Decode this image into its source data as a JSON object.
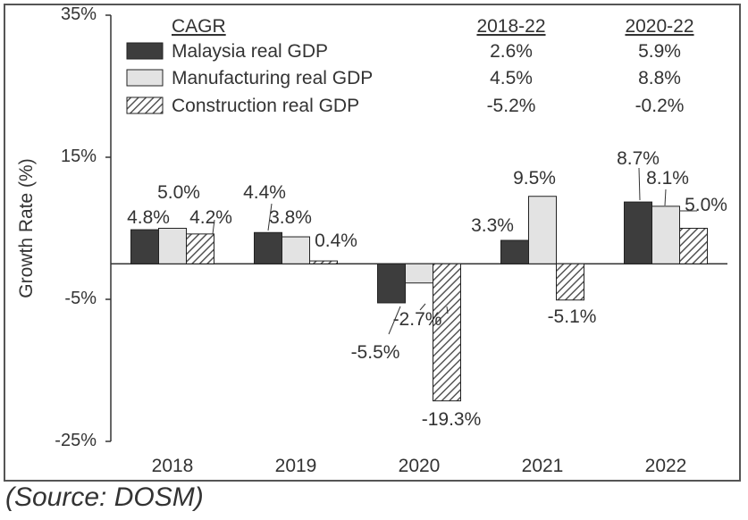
{
  "chart_data": {
    "type": "bar",
    "title": "",
    "xlabel": "",
    "ylabel": "Growth Rate (%)",
    "ylim": [
      -25,
      35
    ],
    "yticks": [
      35,
      15,
      -5,
      -25
    ],
    "ytick_labels": [
      "35%",
      "15%",
      "-5%",
      "-25%"
    ],
    "categories": [
      "2018",
      "2019",
      "2020",
      "2021",
      "2022"
    ],
    "series": [
      {
        "name": "Malaysia real GDP",
        "values": [
          4.8,
          4.4,
          -5.5,
          3.3,
          8.7
        ],
        "labels": [
          "4.8%",
          "4.4%",
          "-5.5%",
          "3.3%",
          "8.7%"
        ],
        "pattern": "solid-dark",
        "color": "#3d3d3d"
      },
      {
        "name": "Manufacturing real GDP",
        "values": [
          5.0,
          3.8,
          -2.7,
          9.5,
          8.1
        ],
        "labels": [
          "5.0%",
          "3.8%",
          "-2.7%",
          "9.5%",
          "8.1%"
        ],
        "pattern": "solid-light",
        "color": "#e3e3e3"
      },
      {
        "name": "Construction real GDP",
        "values": [
          4.2,
          0.4,
          -19.3,
          -5.1,
          5.0
        ],
        "labels": [
          "4.2%",
          "0.4%",
          "-19.3%",
          "-5.1%",
          "5.0%"
        ],
        "pattern": "hatched",
        "color": "#555555"
      }
    ],
    "legend": {
      "placement": "top-left",
      "header": "CAGR",
      "columns": [
        "2018-22",
        "2020-22"
      ],
      "rows": [
        [
          "2.6%",
          "5.9%"
        ],
        [
          "4.5%",
          "8.8%"
        ],
        [
          "-5.2%",
          "-0.2%"
        ]
      ]
    },
    "grid": false
  },
  "source": "(Source: DOSM)"
}
